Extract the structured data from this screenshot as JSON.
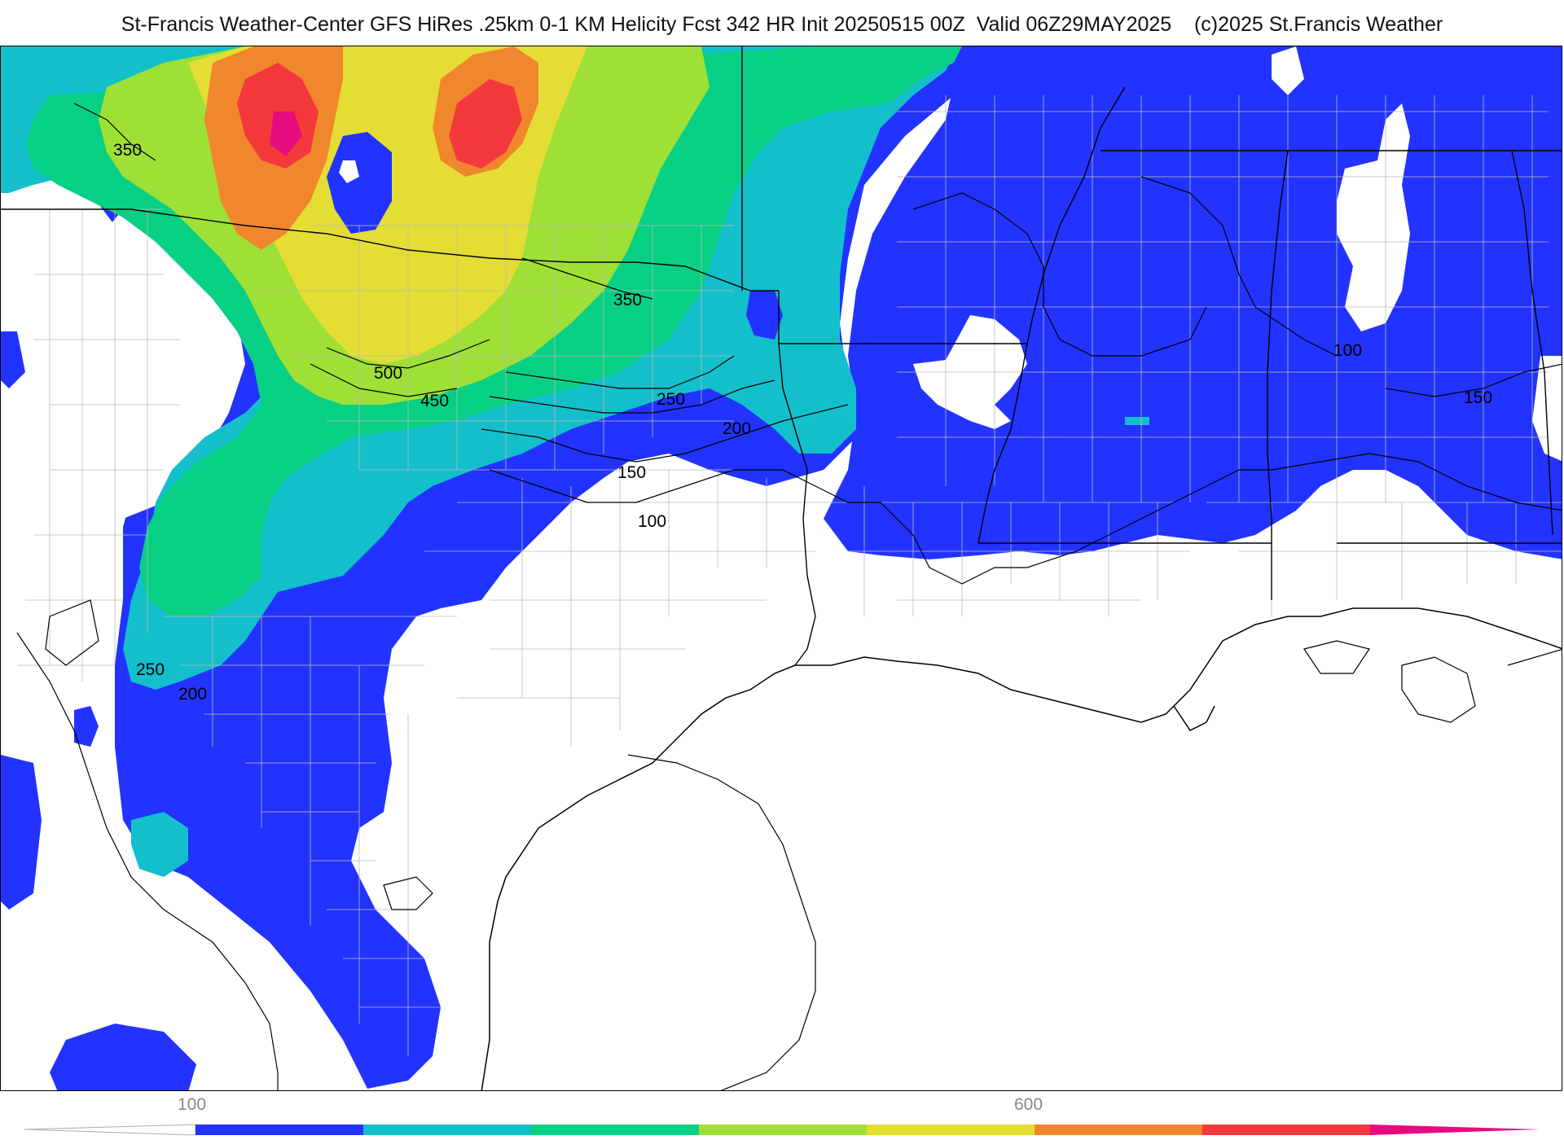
{
  "header": {
    "title": "St-Francis Weather-Center GFS HiRes .25km 0-1 KM Helicity Fcst 342 HR Init 20250515 00Z  Valid 06Z29MAY2025    (c)2025 St.Francis Weather"
  },
  "map": {
    "field": "0-1 KM Helicity",
    "contour_labels": [
      "350",
      "350",
      "500",
      "450",
      "250",
      "200",
      "150",
      "100",
      "250",
      "200",
      "100",
      "150"
    ],
    "colors": {
      "blue": "#2233ff",
      "teal": "#13bfcb",
      "green": "#07d084",
      "lime": "#9ee035",
      "yellow": "#e4dd34",
      "orange": "#f0872c",
      "red": "#f4393c",
      "magenta": "#e60c7e",
      "land_background": "#ffffff"
    }
  },
  "colorbar": {
    "tick_labels": [
      "100",
      "600"
    ],
    "colors": [
      "#2233ff",
      "#13bfcb",
      "#07d084",
      "#9ee035",
      "#e4dd34",
      "#f0872c",
      "#f4393c",
      "#e60c7e"
    ]
  }
}
